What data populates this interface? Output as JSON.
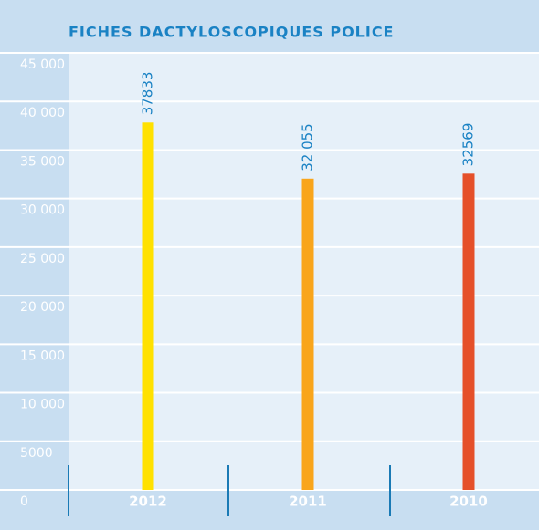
{
  "chart_data": {
    "type": "bar",
    "title": "FICHES DACTYLOSCOPIQUES POLICE",
    "categories": [
      "2012",
      "2011",
      "2010"
    ],
    "values": [
      37833,
      32055,
      32569
    ],
    "value_labels": [
      "37833",
      "32 055",
      "32569"
    ],
    "colors": [
      "#ffe100",
      "#f9a51b",
      "#e5502a"
    ],
    "ylim": [
      0,
      45000
    ],
    "yticks": [
      0,
      5000,
      {
        "value": 10000,
        "label": "10 000"
      },
      {
        "value": 15000,
        "label": "15 000"
      },
      {
        "value": 20000,
        "label": "20 000"
      },
      {
        "value": 25000,
        "label": "25 000"
      },
      {
        "value": 30000,
        "label": "30 000"
      },
      {
        "value": 35000,
        "label": "35 000"
      },
      {
        "value": 40000,
        "label": "40 000"
      },
      {
        "value": 45000,
        "label": "45 000"
      }
    ],
    "grid": true
  }
}
